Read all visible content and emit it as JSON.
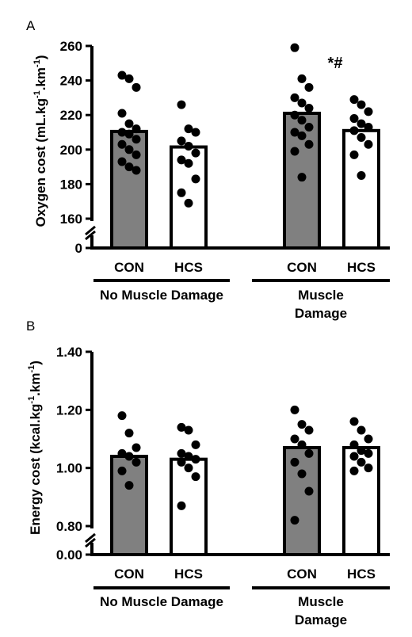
{
  "chart_data": [
    {
      "type": "bar",
      "panel_label": "A",
      "ylabel": "Oxygen cost (mL.kg",
      "ylabel_sup1": "-1",
      "ylabel_mid": ".km",
      "ylabel_sup2": "-1",
      "ylabel_end": ")",
      "ylim": [
        160,
        260
      ],
      "y_ticks": [
        "260",
        "240",
        "220",
        "200",
        "180",
        "160"
      ],
      "y_tick_values": [
        260,
        240,
        220,
        200,
        180,
        160
      ],
      "y_zero_label": "0",
      "categories": [
        "CON",
        "HCS",
        "CON",
        "HCS"
      ],
      "groups": [
        {
          "label": "No Muscle Damage",
          "lines": [
            "No Muscle Damage"
          ]
        },
        {
          "label": "Muscle Damage",
          "lines": [
            "Muscle",
            "Damage"
          ]
        }
      ],
      "bar_colors": [
        "#808080",
        "#ffffff",
        "#808080",
        "#ffffff"
      ],
      "values": [
        210.5,
        201.5,
        221.0,
        211.0
      ],
      "points": [
        [
          243,
          241,
          236,
          221,
          215,
          212,
          210,
          209,
          206,
          203,
          200,
          197,
          193,
          190,
          188
        ],
        [
          226,
          212,
          210,
          205,
          202,
          198,
          194,
          192,
          183,
          175,
          169
        ],
        [
          259,
          241,
          236,
          230,
          227,
          224,
          220,
          217,
          213,
          210,
          208,
          203,
          199,
          184
        ],
        [
          229,
          226,
          222,
          218,
          215,
          213,
          211,
          207,
          203,
          197,
          185
        ]
      ],
      "annotation": {
        "text": "*#",
        "category_index": 2
      }
    },
    {
      "type": "bar",
      "panel_label": "B",
      "ylabel": "Energy cost (kcal.kg",
      "ylabel_sup1": "-1",
      "ylabel_mid": ".km",
      "ylabel_sup2": "-1",
      "ylabel_end": ")",
      "ylim": [
        0.8,
        1.4
      ],
      "y_ticks": [
        "1.40",
        "1.20",
        "1.00",
        "0.80"
      ],
      "y_tick_values": [
        1.4,
        1.2,
        1.0,
        0.8
      ],
      "y_zero_label": "0.00",
      "categories": [
        "CON",
        "HCS",
        "CON",
        "HCS"
      ],
      "groups": [
        {
          "label": "No Muscle Damage",
          "lines": [
            "No Muscle Damage"
          ]
        },
        {
          "label": "Muscle Damage",
          "lines": [
            "Muscle",
            "Damage"
          ]
        }
      ],
      "bar_colors": [
        "#808080",
        "#ffffff",
        "#808080",
        "#ffffff"
      ],
      "values": [
        1.04,
        1.03,
        1.07,
        1.07
      ],
      "points": [
        [
          1.18,
          1.12,
          1.07,
          1.05,
          1.04,
          1.02,
          0.99,
          0.94
        ],
        [
          1.14,
          1.13,
          1.08,
          1.05,
          1.04,
          1.03,
          1.02,
          1.0,
          0.97,
          0.87
        ],
        [
          1.2,
          1.15,
          1.13,
          1.1,
          1.08,
          1.05,
          1.02,
          0.98,
          0.92,
          0.82
        ],
        [
          1.16,
          1.13,
          1.1,
          1.08,
          1.06,
          1.05,
          1.04,
          1.02,
          1.0,
          0.99
        ]
      ]
    }
  ]
}
